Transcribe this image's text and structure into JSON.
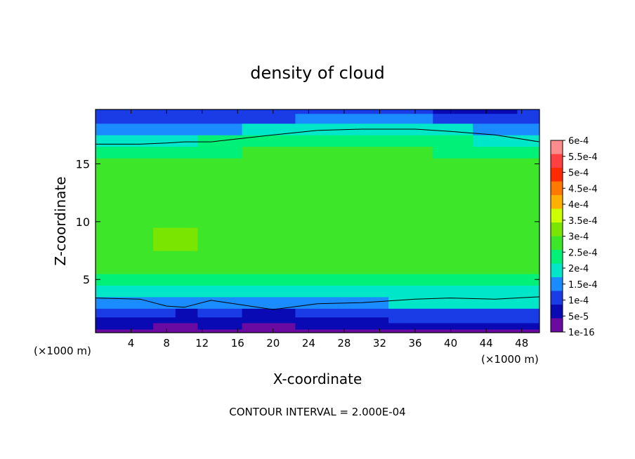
{
  "chart_data": {
    "type": "heatmap",
    "title": "density of cloud",
    "xlabel": "X-coordinate",
    "ylabel": "Z-coordinate",
    "x_unit_left": "(×1000 m)",
    "x_unit_right": "(×1000 m)",
    "footer": "CONTOUR INTERVAL = 2.000E-04",
    "xlim": [
      0,
      50
    ],
    "ylim": [
      0.4,
      19.7
    ],
    "x_ticks": [
      4,
      8,
      12,
      16,
      20,
      24,
      28,
      32,
      36,
      40,
      44,
      48
    ],
    "y_ticks": [
      5,
      10,
      15
    ],
    "colorbar": {
      "labels": [
        "6e-4",
        "5.5e-4",
        "5e-4",
        "4.5e-4",
        "4e-4",
        "3.5e-4",
        "3e-4",
        "2.5e-4",
        "2e-4",
        "1.5e-4",
        "1e-4",
        "5e-5",
        "1e-16"
      ],
      "colors": [
        "#ff8c8c",
        "#ff4040",
        "#ff2a00",
        "#ff7800",
        "#ffb000",
        "#ccff00",
        "#7ae600",
        "#3ee62a",
        "#00f078",
        "#00e6c8",
        "#1a8cff",
        "#1a3ce6",
        "#0a0ab4",
        "#6a0aa0"
      ]
    },
    "field": {
      "x": [
        0,
        5,
        8,
        10,
        13,
        20,
        25,
        30,
        36,
        40,
        45,
        50
      ],
      "z": [
        0.4,
        1.0,
        1.5,
        2.0,
        3.0,
        4.0,
        5.0,
        6.0,
        7.0,
        8.0,
        9.0,
        10.0,
        11.0,
        12.0,
        13.0,
        14.0,
        15.0,
        16.0,
        17.0,
        18.0,
        19.0,
        19.7
      ],
      "levels_by_x": [
        [
          0,
          1,
          1,
          2,
          3,
          4,
          5,
          6,
          6,
          6,
          6,
          6,
          6,
          6,
          6,
          6,
          6,
          5,
          4,
          3,
          2,
          2
        ],
        [
          0,
          1,
          1,
          2,
          3,
          4,
          5,
          6,
          6,
          6,
          6,
          6,
          6,
          6,
          6,
          6,
          6,
          5,
          4,
          3,
          2,
          2
        ],
        [
          0,
          0,
          1,
          2,
          3,
          4,
          5,
          6,
          6,
          7,
          7,
          6,
          6,
          6,
          6,
          6,
          6,
          5,
          4,
          3,
          2,
          2
        ],
        [
          0,
          0,
          1,
          1,
          3,
          4,
          5,
          6,
          6,
          7,
          7,
          6,
          6,
          6,
          6,
          6,
          6,
          5,
          4,
          3,
          2,
          2
        ],
        [
          0,
          1,
          1,
          2,
          3,
          4,
          5,
          6,
          6,
          6,
          6,
          6,
          6,
          6,
          6,
          6,
          6,
          5,
          5,
          3,
          2,
          2
        ],
        [
          0,
          0,
          1,
          1,
          3,
          4,
          5,
          6,
          6,
          6,
          6,
          6,
          6,
          6,
          6,
          6,
          6,
          6,
          5,
          4,
          2,
          2
        ],
        [
          0,
          1,
          1,
          2,
          3,
          4,
          5,
          6,
          6,
          6,
          6,
          6,
          6,
          6,
          6,
          6,
          6,
          6,
          5,
          4,
          3,
          2
        ],
        [
          0,
          1,
          1,
          2,
          3,
          4,
          5,
          6,
          6,
          6,
          6,
          6,
          6,
          6,
          6,
          6,
          6,
          6,
          5,
          4,
          3,
          2
        ],
        [
          0,
          1,
          2,
          2,
          4,
          4,
          5,
          6,
          6,
          6,
          6,
          6,
          6,
          6,
          6,
          6,
          6,
          6,
          5,
          4,
          3,
          2
        ],
        [
          0,
          1,
          2,
          2,
          4,
          4,
          5,
          6,
          6,
          6,
          6,
          6,
          6,
          6,
          6,
          6,
          6,
          5,
          5,
          4,
          2,
          1
        ],
        [
          0,
          1,
          2,
          2,
          4,
          4,
          5,
          6,
          6,
          6,
          6,
          6,
          6,
          6,
          6,
          6,
          6,
          5,
          4,
          3,
          2,
          1
        ],
        [
          0,
          1,
          2,
          2,
          4,
          4,
          5,
          6,
          6,
          6,
          6,
          6,
          6,
          6,
          6,
          6,
          6,
          5,
          4,
          3,
          2,
          2
        ]
      ],
      "contour_upper_z": [
        16.7,
        16.7,
        16.8,
        16.9,
        16.9,
        17.5,
        17.9,
        18.0,
        18.0,
        17.8,
        17.5,
        16.9
      ],
      "contour_lower_z": [
        3.4,
        3.3,
        2.7,
        2.6,
        3.2,
        2.4,
        2.9,
        3.0,
        3.3,
        3.4,
        3.3,
        3.5
      ]
    }
  }
}
